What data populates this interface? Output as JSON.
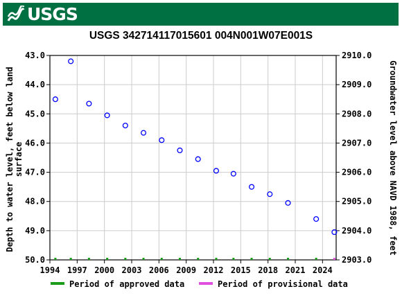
{
  "header": {
    "logo_text": "USGS"
  },
  "chart_data": {
    "type": "scatter",
    "title": "USGS 342714117015601 004N001W07E001S",
    "ylabel_left": "Depth to water level, feet below land surface",
    "ylabel_left_lines": [
      "Depth to water level, feet below land",
      "surface"
    ],
    "ylabel_right": "Groundwater level above NAVD 1988, feet",
    "xlim": [
      1994,
      2025.5
    ],
    "ylim_left": [
      50.0,
      43.0
    ],
    "ylim_right": [
      2903.0,
      2910.0
    ],
    "x_ticks": [
      1994,
      1997,
      2000,
      2003,
      2006,
      2009,
      2012,
      2015,
      2018,
      2021,
      2024
    ],
    "y_ticks_left": [
      "43.0",
      "44.0",
      "45.0",
      "46.0",
      "47.0",
      "48.0",
      "49.0",
      "50.0"
    ],
    "y_ticks_right": [
      "2910.0",
      "2909.0",
      "2908.0",
      "2907.0",
      "2906.0",
      "2905.0",
      "2904.0",
      "2903.0"
    ],
    "grid": true,
    "series": [
      {
        "name": "Depth to water level",
        "color": "#0000ff",
        "marker": "open-circle",
        "x": [
          1994.6,
          1996.3,
          1998.3,
          2000.3,
          2002.3,
          2004.3,
          2006.3,
          2008.3,
          2010.3,
          2012.3,
          2014.2,
          2016.2,
          2018.2,
          2020.2,
          2023.3,
          2025.3
        ],
        "y": [
          44.5,
          43.2,
          44.65,
          45.05,
          45.4,
          45.65,
          45.9,
          46.25,
          46.55,
          46.95,
          47.05,
          47.5,
          47.75,
          48.05,
          48.6,
          49.05
        ]
      }
    ],
    "approved_period_markers": [
      1994.6,
      1996.3,
      1998.3,
      2000.3,
      2002.3,
      2004.3,
      2006.3,
      2008.3,
      2010.3,
      2012.3,
      2014.2,
      2016.2,
      2018.2,
      2020.2,
      2023.3
    ],
    "provisional_period_markers": [
      2025.3
    ],
    "legend": {
      "placement": "bottom",
      "items": [
        {
          "label": "Period of approved data",
          "color": "#1a9e1a"
        },
        {
          "label": "Period of provisional data",
          "color": "#e050e0"
        }
      ]
    }
  }
}
